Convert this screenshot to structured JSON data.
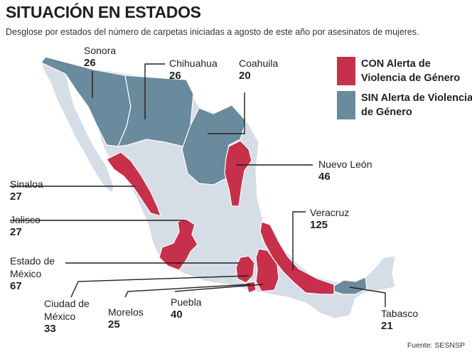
{
  "title": "SITUACIÓN EN ESTADOS",
  "subtitle": "Desglose por estados del número de carpetas iniciadas a agosto de este año por asesinatos de mujeres.",
  "colors": {
    "con_alerta": "#c7304a",
    "sin_alerta": "#6a8a9d",
    "other_states": "#d5dde7",
    "background": "#ffffff"
  },
  "legend": [
    {
      "key": "con",
      "label": "CON Alerta de Violencia de Género"
    },
    {
      "key": "sin",
      "label": "SIN Alerta de Violencia de Género"
    }
  ],
  "states": [
    {
      "name": "Sonora",
      "value": "26",
      "alerta": "sin"
    },
    {
      "name": "Chihuahua",
      "value": "26",
      "alerta": "sin"
    },
    {
      "name": "Coahuila",
      "value": "20",
      "alerta": "sin"
    },
    {
      "name": "Nuevo León",
      "value": "46",
      "alerta": "con"
    },
    {
      "name": "Sinaloa",
      "value": "27",
      "alerta": "con"
    },
    {
      "name": "Jalisco",
      "value": "27",
      "alerta": "con"
    },
    {
      "name": "Veracruz",
      "value": "125",
      "alerta": "con"
    },
    {
      "name": "Estado de México",
      "value": "67",
      "alerta": "con"
    },
    {
      "name": "Ciudad de México",
      "value": "33",
      "alerta": "con"
    },
    {
      "name": "Morelos",
      "value": "25",
      "alerta": "con"
    },
    {
      "name": "Puebla",
      "value": "40",
      "alerta": "con"
    },
    {
      "name": "Tabasco",
      "value": "21",
      "alerta": "sin"
    }
  ],
  "source": "Fuente: SESNSP"
}
